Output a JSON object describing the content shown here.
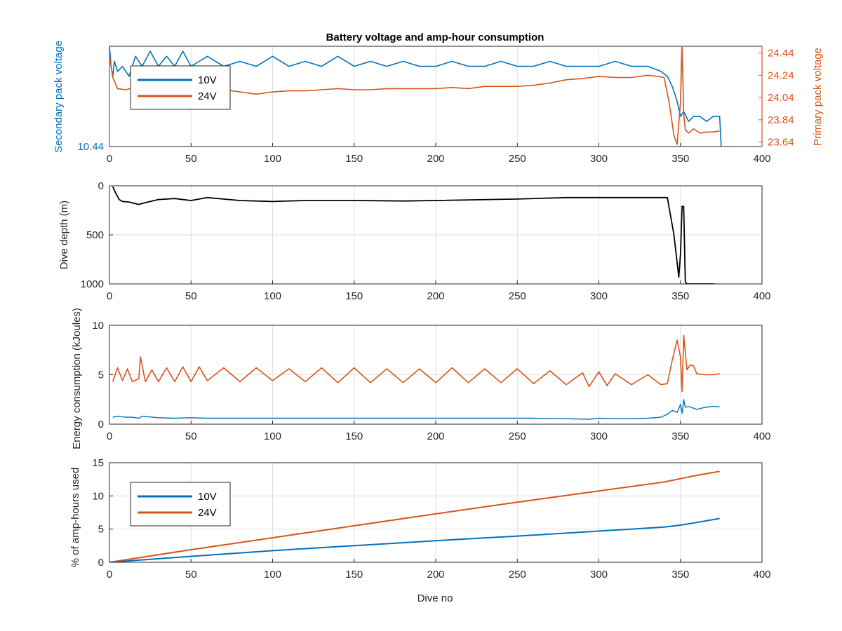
{
  "figure": {
    "title": "Battery voltage and amp-hour consumption",
    "xlabel": "Dive no"
  },
  "colors": {
    "v10": "#0072BD",
    "v24": "#D95319",
    "depth": "#000000",
    "axis": "#262626",
    "grid": "#dfdfdf"
  },
  "chart_data": [
    {
      "type": "line",
      "id": "voltage",
      "title": "Battery voltage and amp-hour consumption",
      "xlim": [
        0,
        400
      ],
      "x_ticks": [
        "0",
        "50",
        "100",
        "150",
        "200",
        "250",
        "300",
        "350",
        "400"
      ],
      "ylabel_left": "Secondary pack voltage",
      "ylabel_right": "Primary pack voltage",
      "left_tick_labels": [
        "10.44"
      ],
      "right_tick_labels": [
        "24.44",
        "24.24",
        "24.04",
        "23.84",
        "23.64"
      ],
      "right_ylim": [
        23.6,
        24.5
      ],
      "left_ylim": [
        10.44,
        10.64
      ],
      "legend": [
        "10V",
        "24V"
      ],
      "legend_placement": "top-left",
      "grid": true,
      "series": [
        {
          "name": "10V",
          "axis": "left",
          "x": [
            0,
            1,
            2,
            3,
            5,
            8,
            12,
            16,
            20,
            25,
            30,
            35,
            40,
            45,
            50,
            55,
            60,
            70,
            80,
            90,
            100,
            110,
            120,
            130,
            140,
            150,
            160,
            170,
            180,
            190,
            200,
            210,
            220,
            230,
            240,
            250,
            260,
            270,
            280,
            290,
            300,
            310,
            320,
            330,
            338,
            342,
            345,
            348,
            350,
            352,
            355,
            358,
            362,
            366,
            370,
            374,
            375
          ],
          "y": [
            10.64,
            10.6,
            10.58,
            10.61,
            10.59,
            10.6,
            10.58,
            10.62,
            10.6,
            10.63,
            10.6,
            10.62,
            10.6,
            10.63,
            10.6,
            10.61,
            10.62,
            10.6,
            10.61,
            10.6,
            10.62,
            10.6,
            10.61,
            10.6,
            10.62,
            10.6,
            10.61,
            10.6,
            10.61,
            10.6,
            10.6,
            10.61,
            10.6,
            10.6,
            10.61,
            10.6,
            10.6,
            10.61,
            10.6,
            10.6,
            10.6,
            10.61,
            10.6,
            10.6,
            10.59,
            10.58,
            10.56,
            10.53,
            10.5,
            10.51,
            10.49,
            10.5,
            10.5,
            10.49,
            10.5,
            10.5,
            10.44
          ]
        },
        {
          "name": "24V",
          "axis": "right",
          "x": [
            0,
            2,
            5,
            10,
            15,
            20,
            30,
            40,
            50,
            60,
            70,
            80,
            90,
            100,
            110,
            120,
            130,
            140,
            150,
            160,
            170,
            180,
            190,
            200,
            210,
            220,
            230,
            240,
            250,
            260,
            270,
            280,
            290,
            300,
            310,
            320,
            330,
            336,
            340,
            343,
            346,
            348,
            350,
            351,
            352,
            353,
            355,
            358,
            362,
            366,
            370,
            374
          ],
          "y": [
            24.42,
            24.22,
            24.12,
            24.11,
            24.13,
            24.12,
            24.15,
            24.13,
            24.1,
            24.12,
            24.11,
            24.09,
            24.07,
            24.09,
            24.1,
            24.1,
            24.11,
            24.12,
            24.11,
            24.11,
            24.12,
            24.12,
            24.12,
            24.12,
            24.13,
            24.12,
            24.14,
            24.14,
            24.14,
            24.15,
            24.17,
            24.2,
            24.21,
            24.23,
            24.22,
            24.22,
            24.24,
            24.23,
            24.22,
            24.0,
            23.7,
            23.62,
            24.0,
            24.5,
            23.9,
            23.75,
            23.72,
            23.76,
            23.72,
            23.73,
            23.73,
            23.74
          ]
        }
      ]
    },
    {
      "type": "line",
      "id": "depth",
      "xlim": [
        0,
        400
      ],
      "ylim": [
        0,
        1000
      ],
      "y_reversed": true,
      "ylabel": "Dive depth (m)",
      "x_ticks": [
        "0",
        "50",
        "100",
        "150",
        "200",
        "250",
        "300",
        "350",
        "400"
      ],
      "y_ticks": [
        "0",
        "500",
        "1000"
      ],
      "grid": true,
      "series": [
        {
          "x": [
            2,
            4,
            6,
            8,
            12,
            18,
            20,
            25,
            30,
            40,
            50,
            60,
            80,
            100,
            120,
            150,
            180,
            200,
            250,
            280,
            300,
            330,
            342,
            346,
            349,
            350,
            351,
            352,
            353,
            354,
            356,
            360,
            370,
            374
          ],
          "y": [
            10,
            80,
            140,
            160,
            165,
            190,
            180,
            160,
            140,
            130,
            150,
            120,
            150,
            160,
            150,
            150,
            155,
            150,
            135,
            120,
            120,
            120,
            120,
            500,
            930,
            700,
            210,
            210,
            980,
            1000,
            1000,
            1000,
            1000,
            1010
          ]
        }
      ]
    },
    {
      "type": "line",
      "id": "energy",
      "xlim": [
        0,
        400
      ],
      "ylim": [
        0,
        10
      ],
      "ylabel": "Energy consumption (kJoules)",
      "x_ticks": [
        "0",
        "50",
        "100",
        "150",
        "200",
        "250",
        "300",
        "350",
        "400"
      ],
      "y_ticks": [
        "0",
        "5",
        "10"
      ],
      "grid": true,
      "series": [
        {
          "name": "24V",
          "x": [
            2,
            5,
            8,
            11,
            14,
            18,
            19,
            22,
            26,
            30,
            35,
            40,
            45,
            50,
            55,
            60,
            70,
            80,
            90,
            100,
            110,
            120,
            130,
            140,
            150,
            160,
            170,
            180,
            190,
            200,
            210,
            220,
            230,
            240,
            250,
            260,
            270,
            280,
            290,
            294,
            300,
            305,
            310,
            320,
            330,
            338,
            342,
            345,
            348,
            350,
            351,
            352,
            354,
            356,
            358,
            360,
            365,
            370,
            374
          ],
          "y": [
            4.3,
            5.7,
            4.4,
            5.6,
            4.3,
            4.6,
            6.8,
            4.3,
            5.5,
            4.3,
            5.7,
            4.3,
            5.8,
            4.3,
            5.8,
            4.4,
            5.7,
            4.3,
            5.7,
            4.4,
            5.6,
            4.3,
            5.7,
            4.2,
            5.7,
            4.2,
            5.6,
            4.2,
            5.6,
            4.2,
            5.7,
            4.2,
            5.6,
            4.2,
            5.6,
            4.1,
            5.4,
            4.0,
            5.2,
            3.8,
            5.3,
            3.9,
            5.1,
            4.0,
            5.0,
            4.0,
            4.1,
            6.5,
            8.5,
            6.8,
            3.3,
            9.0,
            5.5,
            6.0,
            5.9,
            5.1,
            5.0,
            5.0,
            5.1
          ]
        },
        {
          "name": "10V",
          "x": [
            2,
            5,
            10,
            14,
            18,
            20,
            30,
            40,
            50,
            60,
            80,
            100,
            120,
            140,
            160,
            180,
            200,
            220,
            240,
            260,
            280,
            294,
            300,
            310,
            320,
            330,
            338,
            342,
            345,
            348,
            350,
            351,
            352,
            353,
            355,
            360,
            365,
            370,
            374
          ],
          "y": [
            0.7,
            0.8,
            0.7,
            0.7,
            0.6,
            0.8,
            0.65,
            0.6,
            0.65,
            0.6,
            0.6,
            0.6,
            0.6,
            0.6,
            0.6,
            0.6,
            0.6,
            0.6,
            0.6,
            0.6,
            0.55,
            0.5,
            0.6,
            0.55,
            0.55,
            0.6,
            0.7,
            1.0,
            1.4,
            1.2,
            2.0,
            1.1,
            2.5,
            1.7,
            1.8,
            1.5,
            1.7,
            1.8,
            1.75
          ]
        }
      ]
    },
    {
      "type": "line",
      "id": "amp_hours",
      "xlim": [
        0,
        400
      ],
      "ylim": [
        0,
        15
      ],
      "ylabel": "% of amp-hours used",
      "xlabel": "Dive no",
      "x_ticks": [
        "0",
        "50",
        "100",
        "150",
        "200",
        "250",
        "300",
        "350",
        "400"
      ],
      "y_ticks": [
        "0",
        "5",
        "10",
        "15"
      ],
      "legend": [
        "10V",
        "24V"
      ],
      "legend_placement": "top-left",
      "grid": true,
      "series": [
        {
          "name": "10V",
          "x": [
            0,
            50,
            100,
            150,
            200,
            250,
            300,
            340,
            350,
            360,
            374
          ],
          "y": [
            0,
            0.9,
            1.75,
            2.5,
            3.25,
            3.95,
            4.7,
            5.3,
            5.6,
            6.0,
            6.6
          ]
        },
        {
          "name": "24V",
          "x": [
            0,
            50,
            100,
            150,
            200,
            250,
            300,
            340,
            350,
            360,
            374
          ],
          "y": [
            0,
            1.9,
            3.7,
            5.5,
            7.3,
            9.05,
            10.75,
            12.1,
            12.6,
            13.1,
            13.7
          ]
        }
      ]
    }
  ]
}
